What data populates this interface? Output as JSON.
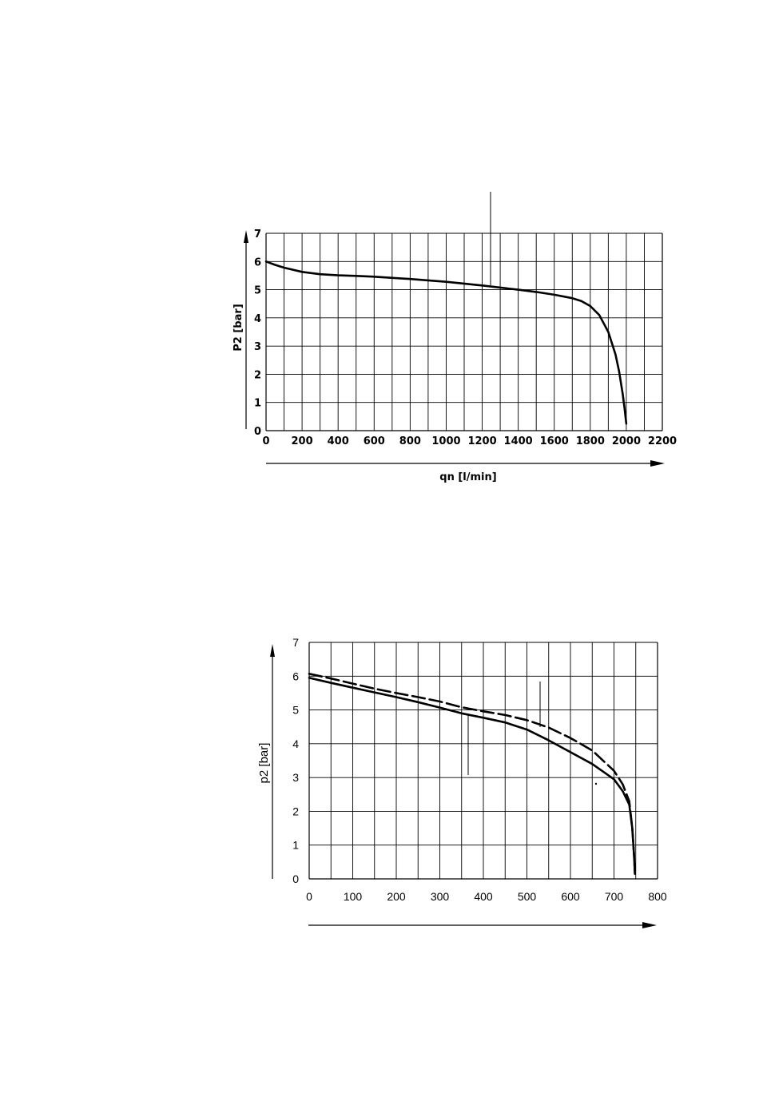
{
  "chart_data": [
    {
      "type": "line",
      "title": "",
      "xlabel": "qn [l/min]",
      "ylabel": "P2 [bar]",
      "xlim": [
        0,
        2200
      ],
      "ylim": [
        0,
        7
      ],
      "x_ticks": [
        "0",
        "200",
        "400",
        "600",
        "800",
        "1000",
        "1200",
        "1400",
        "1600",
        "1800",
        "2000",
        "2200"
      ],
      "y_ticks": [
        "0",
        "1",
        "2",
        "3",
        "4",
        "5",
        "6",
        "7"
      ],
      "grid": true,
      "series": [
        {
          "style": "solid",
          "color": "#000000",
          "x": [
            0,
            50,
            100,
            200,
            300,
            400,
            500,
            600,
            800,
            1000,
            1200,
            1400,
            1500,
            1600,
            1700,
            1750,
            1800,
            1850,
            1900,
            1940,
            1960,
            1980,
            1990,
            2000
          ],
          "y": [
            6.0,
            5.88,
            5.78,
            5.63,
            5.55,
            5.51,
            5.49,
            5.46,
            5.38,
            5.28,
            5.15,
            5.0,
            4.92,
            4.82,
            4.7,
            4.6,
            4.42,
            4.1,
            3.5,
            2.7,
            2.1,
            1.3,
            0.8,
            0.25
          ]
        }
      ]
    },
    {
      "type": "line",
      "title": "",
      "xlabel": "",
      "ylabel": "p2 [bar]",
      "xlim": [
        0,
        800
      ],
      "ylim": [
        0,
        7
      ],
      "x_ticks": [
        "0",
        "100",
        "200",
        "300",
        "400",
        "500",
        "600",
        "700",
        "800"
      ],
      "y_ticks": [
        "0",
        "1",
        "2",
        "3",
        "4",
        "5",
        "6",
        "7"
      ],
      "grid": true,
      "series": [
        {
          "style": "dashed",
          "color": "#000000",
          "x": [
            0,
            50,
            100,
            150,
            200,
            250,
            300,
            350,
            400,
            450,
            500,
            550,
            600,
            650,
            700,
            720,
            735,
            742,
            746,
            748
          ],
          "y": [
            6.07,
            5.93,
            5.78,
            5.63,
            5.5,
            5.38,
            5.25,
            5.08,
            4.96,
            4.85,
            4.7,
            4.48,
            4.17,
            3.8,
            3.2,
            2.8,
            2.3,
            1.5,
            0.7,
            0.15
          ]
        },
        {
          "style": "solid",
          "color": "#000000",
          "x": [
            0,
            50,
            100,
            150,
            200,
            250,
            300,
            350,
            400,
            450,
            500,
            550,
            600,
            650,
            700,
            720,
            735,
            742,
            746,
            748
          ],
          "y": [
            5.95,
            5.8,
            5.66,
            5.52,
            5.38,
            5.23,
            5.07,
            4.9,
            4.77,
            4.63,
            4.42,
            4.1,
            3.75,
            3.4,
            2.95,
            2.6,
            2.2,
            1.5,
            0.7,
            0.15
          ]
        }
      ]
    }
  ]
}
